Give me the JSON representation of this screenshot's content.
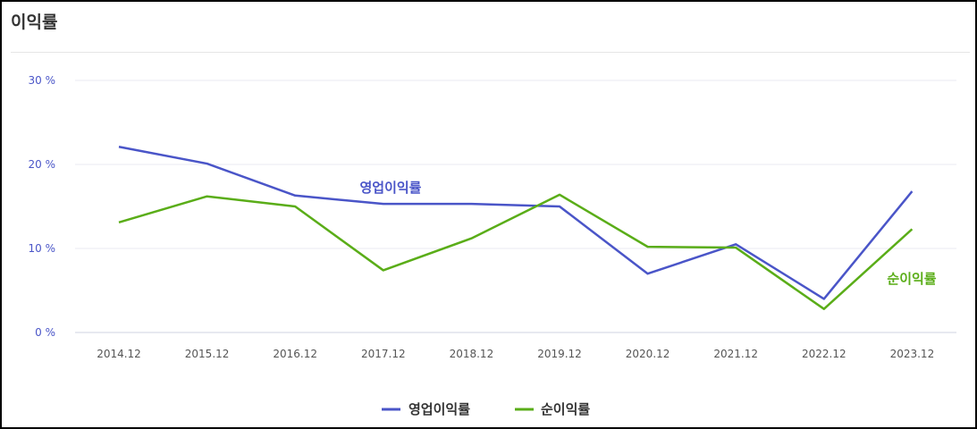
{
  "chart_data": {
    "type": "line",
    "title": "이익률",
    "categories": [
      "2014.12",
      "2015.12",
      "2016.12",
      "2017.12",
      "2018.12",
      "2019.12",
      "2020.12",
      "2021.12",
      "2022.12",
      "2023.12"
    ],
    "y_ticks": [
      "0 %",
      "10 %",
      "20 %",
      "30 %"
    ],
    "ylim": [
      0,
      30
    ],
    "grid": true,
    "legend_position": "bottom",
    "series": [
      {
        "name": "영업이익률",
        "color": "#4a55c8",
        "values": [
          22.1,
          20.1,
          16.3,
          15.3,
          15.3,
          15.0,
          7.0,
          10.5,
          4.0,
          16.8
        ]
      },
      {
        "name": "순이익률",
        "color": "#5aad18",
        "values": [
          13.1,
          16.2,
          15.0,
          7.4,
          11.2,
          16.4,
          10.2,
          10.1,
          2.8,
          12.3
        ]
      }
    ]
  }
}
